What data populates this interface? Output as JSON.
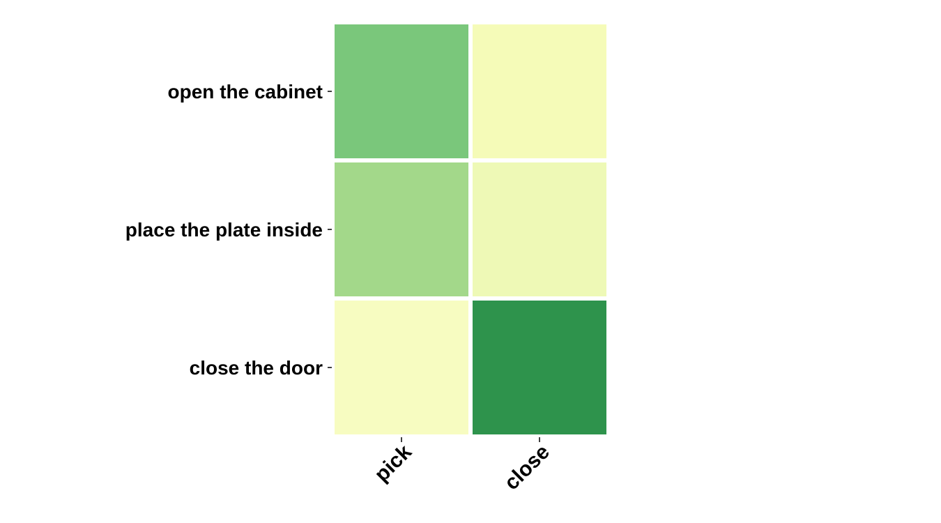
{
  "chart_data": {
    "type": "heatmap",
    "title": "",
    "xlabel": "",
    "ylabel": "",
    "rows": [
      "open the cabinet",
      "place the plate inside",
      "close the door"
    ],
    "columns": [
      "pick",
      "close"
    ],
    "values": [
      [
        0.55,
        0.05
      ],
      [
        0.4,
        0.1
      ],
      [
        0.04,
        0.9
      ]
    ],
    "colors": [
      [
        "#7ac77b",
        "#f5fbb8"
      ],
      [
        "#a3d88a",
        "#eef9b6"
      ],
      [
        "#f7fcc1",
        "#2e934c"
      ]
    ],
    "colormap": "YlGn",
    "colorbar": false,
    "grid": false
  }
}
